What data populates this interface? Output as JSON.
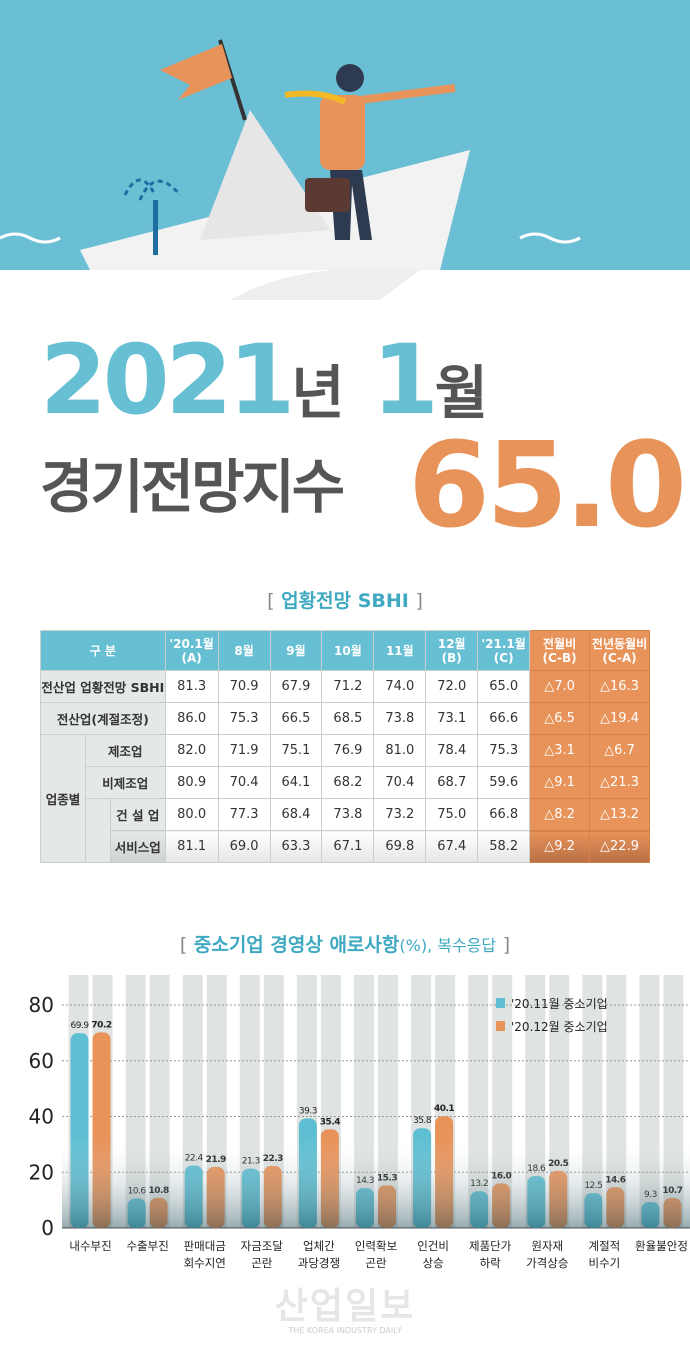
{
  "hero": {
    "title_year": "2021",
    "title_year_unit": "년",
    "title_month": "1",
    "title_month_unit": "월",
    "subtitle": "경기전망지수",
    "value": "65.0",
    "colors": {
      "sky": "#6bbfd4",
      "blue": "#67bfd3",
      "orange": "#e8935a",
      "gray": "#555555"
    }
  },
  "table_section": {
    "title": "업황전망 SBHI",
    "open": "[",
    "close": "]"
  },
  "table": {
    "headers": [
      "구 분",
      "'20.1월\n(A)",
      "8월",
      "9월",
      "10월",
      "11월",
      "12월\n(B)",
      "'21.1월\n(C)",
      "전월비\n(C-B)",
      "전년동월비\n(C-A)"
    ],
    "group_label": "업종별",
    "rows": [
      {
        "label": "전산업 업황전망 SBHI",
        "values": [
          "81.3",
          "70.9",
          "67.9",
          "71.2",
          "74.0",
          "72.0",
          "65.0"
        ],
        "diff": [
          "△7.0",
          "△16.3"
        ]
      },
      {
        "label": "전산업(계절조정)",
        "values": [
          "86.0",
          "75.3",
          "66.5",
          "68.5",
          "73.8",
          "73.1",
          "66.6"
        ],
        "diff": [
          "△6.5",
          "△19.4"
        ]
      },
      {
        "label": "제조업",
        "values": [
          "82.0",
          "71.9",
          "75.1",
          "76.9",
          "81.0",
          "78.4",
          "75.3"
        ],
        "diff": [
          "△3.1",
          "△6.7"
        ]
      },
      {
        "label": "비제조업",
        "values": [
          "80.9",
          "70.4",
          "64.1",
          "68.2",
          "70.4",
          "68.7",
          "59.6"
        ],
        "diff": [
          "△9.1",
          "△21.3"
        ]
      },
      {
        "label": "건 설 업",
        "values": [
          "80.0",
          "77.3",
          "68.4",
          "73.8",
          "73.2",
          "75.0",
          "66.8"
        ],
        "diff": [
          "△8.2",
          "△13.2"
        ]
      },
      {
        "label": "서비스업",
        "values": [
          "81.1",
          "69.0",
          "63.3",
          "67.1",
          "69.8",
          "67.4",
          "58.2"
        ],
        "diff": [
          "△9.2",
          "△22.9"
        ]
      }
    ]
  },
  "chart_section": {
    "title": "중소기업 경영상 애로사항",
    "unit": "(%), 복수응답",
    "open": "[",
    "close": "]"
  },
  "chart_data": {
    "type": "bar",
    "categories": [
      "내수부진",
      "수출부진",
      "판매대금\n회수지연",
      "자금조달\n곤란",
      "업체간\n과당경쟁",
      "인력확보\n곤란",
      "인건비\n상승",
      "제품단가\n하락",
      "원자재\n가격상승",
      "계절적\n비수기",
      "환율불안정"
    ],
    "series": [
      {
        "name": "'20.11월 중소기업",
        "color": "#5fbfd2",
        "values": [
          69.9,
          10.6,
          22.4,
          21.3,
          39.3,
          14.3,
          35.8,
          13.2,
          18.6,
          12.5,
          9.3
        ]
      },
      {
        "name": "'20.12월 중소기업",
        "color": "#e8935a",
        "values": [
          70.2,
          10.8,
          21.9,
          22.3,
          35.4,
          15.3,
          40.1,
          16.0,
          20.5,
          14.6,
          10.7
        ]
      }
    ],
    "ylim": [
      0,
      80
    ],
    "yticks": [
      0,
      20,
      40,
      60,
      80
    ],
    "grid": true,
    "legend": "top-right"
  },
  "watermark": {
    "name": "산업일보",
    "sub": "THE KOREA INDUSTRY DAILY"
  }
}
